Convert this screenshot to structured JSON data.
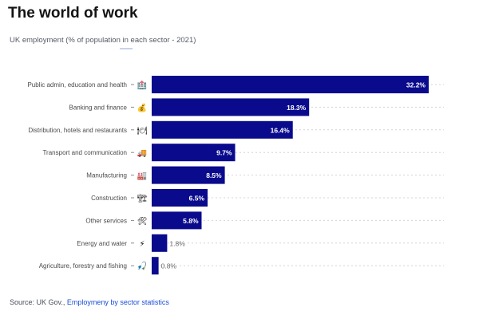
{
  "header": {
    "title": "The world of work",
    "subtitle": "UK employment (% of population in each sector - 2021)"
  },
  "footer": {
    "source_prefix": "Source: UK Gov., ",
    "source_link": "Employmeny by sector statistics"
  },
  "colors": {
    "bar": "#0a0a8c",
    "label_inside": "#ffffff",
    "label_outside": "#6a6a6a",
    "category_text": "#4a4a4a",
    "gridline": "#d4d4d4"
  },
  "chart_data": {
    "type": "bar",
    "orientation": "horizontal",
    "title": "The world of work",
    "subtitle": "UK employment (% of population in each sector - 2021)",
    "xlabel": "",
    "ylabel": "",
    "xlim": [
      0,
      35
    ],
    "grid": false,
    "categories": [
      "Public admin, education and health",
      "Banking and finance",
      "Distribution, hotels and restaurants",
      "Transport and communication",
      "Manufacturing",
      "Construction",
      "Other services",
      "Energy and water",
      "Agriculture, forestry and fishing"
    ],
    "icons": [
      "🏥",
      "💰",
      "🍽",
      "🚚",
      "🏭",
      "🏗",
      "🛠",
      "⚡",
      "🎣"
    ],
    "icon_names": [
      "hospital-icon",
      "money-bag-icon",
      "plate-icon",
      "truck-icon",
      "factory-icon",
      "crane-icon",
      "tools-icon",
      "lightning-icon",
      "fishing-icon"
    ],
    "values": [
      32.2,
      18.3,
      16.4,
      9.7,
      8.5,
      6.5,
      5.8,
      1.8,
      0.8
    ],
    "data_labels": [
      "32.2%",
      "18.3%",
      "16.4%",
      "9.7%",
      "8.5%",
      "6.5%",
      "5.8%",
      "1.8%",
      "0.8%"
    ]
  }
}
